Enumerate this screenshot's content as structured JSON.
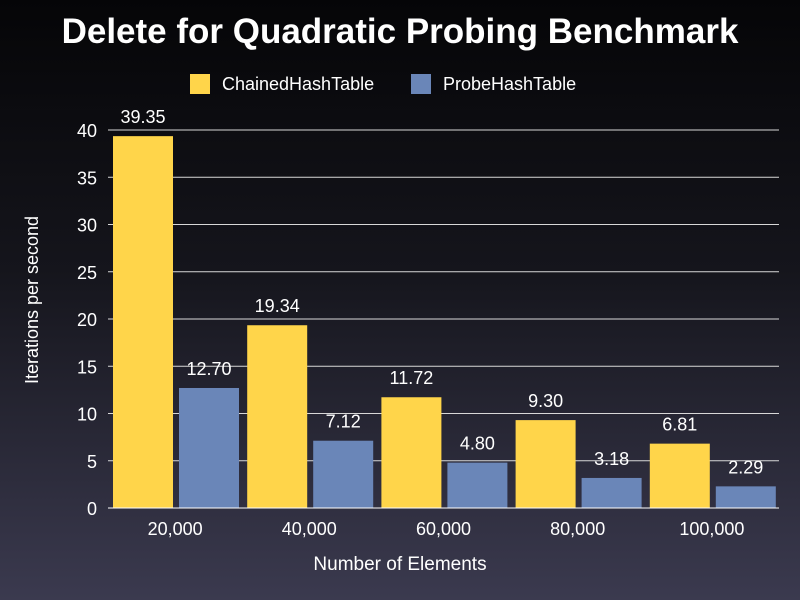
{
  "chart_data": {
    "type": "bar",
    "title": "Delete for Quadratic Probing Benchmark",
    "xlabel": "Number of Elements",
    "ylabel": "Iterations per second",
    "categories": [
      "20,000",
      "40,000",
      "60,000",
      "80,000",
      "100,000"
    ],
    "series": [
      {
        "name": "ChainedHashTable",
        "color": "#ffd54a",
        "values": [
          39.35,
          19.34,
          11.72,
          9.3,
          6.81
        ],
        "labels": [
          "39.35",
          "19.34",
          "11.72",
          "9.30",
          "6.81"
        ]
      },
      {
        "name": "ProbeHashTable",
        "color": "#6a86b8",
        "values": [
          12.7,
          7.12,
          4.8,
          3.18,
          2.29
        ],
        "labels": [
          "12.70",
          "7.12",
          "4.80",
          "3.18",
          "2.29"
        ]
      }
    ],
    "ylim": [
      0,
      40
    ],
    "yticks": [
      "0",
      "5",
      "10",
      "15",
      "20",
      "25",
      "30",
      "35",
      "40"
    ],
    "grid": true,
    "legend": "top-center"
  }
}
